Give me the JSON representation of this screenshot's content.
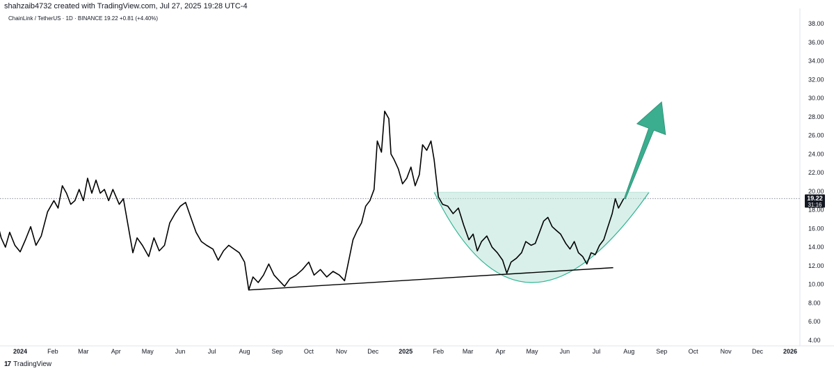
{
  "header": {
    "caption": "shahzaib4732 created with TradingView.com, Jul 27, 2025 19:28 UTC-4"
  },
  "symbol_line": "ChainLink / TetherUS · 1D · BINANCE  19.22  +0.81 (+4.40%)",
  "price_label": {
    "price": "19.22",
    "countdown": "31:16"
  },
  "footer": {
    "brand": "TradingView",
    "logo_glyph": "17"
  },
  "colors": {
    "line": "#000000",
    "cup_fill": "#b9e3d8",
    "cup_stroke": "#2fb592",
    "arrow": "#3aae8f",
    "last_price_box": "#131722",
    "grid_dotted": "#787b86"
  },
  "chart_data": {
    "type": "line",
    "symbol": "ChainLink / TetherUS",
    "interval": "1D",
    "exchange": "BINANCE",
    "last": 19.22,
    "change": "+0.81 (+4.40%)",
    "ylim": [
      4,
      38
    ],
    "y_ticks": [
      "4.00",
      "6.00",
      "8.00",
      "10.00",
      "12.00",
      "14.00",
      "16.00",
      "18.00",
      "20.00",
      "22.00",
      "24.00",
      "26.00",
      "28.00",
      "30.00",
      "32.00",
      "34.00",
      "36.00",
      "38.00"
    ],
    "x_ticks": [
      {
        "label": "2024",
        "date": "2024-01-01",
        "bold": true
      },
      {
        "label": "Feb",
        "date": "2024-02-01"
      },
      {
        "label": "Mar",
        "date": "2024-03-01"
      },
      {
        "label": "Apr",
        "date": "2024-04-01"
      },
      {
        "label": "May",
        "date": "2024-05-01"
      },
      {
        "label": "Jun",
        "date": "2024-06-01"
      },
      {
        "label": "Jul",
        "date": "2024-07-01"
      },
      {
        "label": "Aug",
        "date": "2024-08-01"
      },
      {
        "label": "Sep",
        "date": "2024-09-01"
      },
      {
        "label": "Oct",
        "date": "2024-10-01"
      },
      {
        "label": "Nov",
        "date": "2024-11-01"
      },
      {
        "label": "Dec",
        "date": "2024-12-01"
      },
      {
        "label": "2025",
        "date": "2025-01-01",
        "bold": true
      },
      {
        "label": "Feb",
        "date": "2025-02-01"
      },
      {
        "label": "Mar",
        "date": "2025-03-01"
      },
      {
        "label": "Apr",
        "date": "2025-04-01"
      },
      {
        "label": "May",
        "date": "2025-05-01"
      },
      {
        "label": "Jun",
        "date": "2025-06-01"
      },
      {
        "label": "Jul",
        "date": "2025-07-01"
      },
      {
        "label": "Aug",
        "date": "2025-08-01"
      },
      {
        "label": "Sep",
        "date": "2025-09-01"
      },
      {
        "label": "Oct",
        "date": "2025-10-01"
      },
      {
        "label": "Nov",
        "date": "2025-11-01"
      },
      {
        "label": "Dec",
        "date": "2025-12-01"
      },
      {
        "label": "2026",
        "date": "2026-01-01",
        "bold": true
      }
    ],
    "series": [
      {
        "points": [
          [
            "2023-12-01",
            14.2
          ],
          [
            "2023-12-06",
            15.5
          ],
          [
            "2023-12-10",
            16.8
          ],
          [
            "2023-12-14",
            15.0
          ],
          [
            "2023-12-18",
            14.0
          ],
          [
            "2023-12-22",
            15.6
          ],
          [
            "2023-12-27",
            14.2
          ],
          [
            "2024-01-01",
            13.5
          ],
          [
            "2024-01-06",
            14.8
          ],
          [
            "2024-01-11",
            16.2
          ],
          [
            "2024-01-16",
            14.2
          ],
          [
            "2024-01-21",
            15.2
          ],
          [
            "2024-01-27",
            17.8
          ],
          [
            "2024-02-02",
            19.0
          ],
          [
            "2024-02-06",
            18.2
          ],
          [
            "2024-02-10",
            20.6
          ],
          [
            "2024-02-14",
            19.8
          ],
          [
            "2024-02-18",
            18.6
          ],
          [
            "2024-02-22",
            19.0
          ],
          [
            "2024-02-26",
            20.2
          ],
          [
            "2024-03-01",
            19.0
          ],
          [
            "2024-03-05",
            21.4
          ],
          [
            "2024-03-09",
            19.8
          ],
          [
            "2024-03-13",
            21.2
          ],
          [
            "2024-03-17",
            19.8
          ],
          [
            "2024-03-21",
            20.2
          ],
          [
            "2024-03-25",
            19.0
          ],
          [
            "2024-03-29",
            20.2
          ],
          [
            "2024-04-04",
            18.6
          ],
          [
            "2024-04-08",
            19.2
          ],
          [
            "2024-04-12",
            16.6
          ],
          [
            "2024-04-17",
            13.4
          ],
          [
            "2024-04-21",
            15.0
          ],
          [
            "2024-04-26",
            14.2
          ],
          [
            "2024-05-02",
            13.0
          ],
          [
            "2024-05-07",
            15.0
          ],
          [
            "2024-05-12",
            13.6
          ],
          [
            "2024-05-17",
            14.2
          ],
          [
            "2024-05-22",
            16.6
          ],
          [
            "2024-05-27",
            17.6
          ],
          [
            "2024-06-01",
            18.4
          ],
          [
            "2024-06-06",
            18.8
          ],
          [
            "2024-06-11",
            17.2
          ],
          [
            "2024-06-16",
            15.6
          ],
          [
            "2024-06-21",
            14.6
          ],
          [
            "2024-06-26",
            14.2
          ],
          [
            "2024-07-02",
            13.8
          ],
          [
            "2024-07-07",
            12.6
          ],
          [
            "2024-07-12",
            13.6
          ],
          [
            "2024-07-17",
            14.2
          ],
          [
            "2024-07-22",
            13.8
          ],
          [
            "2024-07-27",
            13.4
          ],
          [
            "2024-08-01",
            12.4
          ],
          [
            "2024-08-05",
            9.4
          ],
          [
            "2024-08-09",
            10.8
          ],
          [
            "2024-08-14",
            10.2
          ],
          [
            "2024-08-19",
            11.0
          ],
          [
            "2024-08-24",
            12.2
          ],
          [
            "2024-08-29",
            11.0
          ],
          [
            "2024-09-03",
            10.4
          ],
          [
            "2024-09-08",
            9.8
          ],
          [
            "2024-09-13",
            10.6
          ],
          [
            "2024-09-19",
            11.0
          ],
          [
            "2024-09-25",
            11.6
          ],
          [
            "2024-10-01",
            12.4
          ],
          [
            "2024-10-06",
            11.0
          ],
          [
            "2024-10-12",
            11.6
          ],
          [
            "2024-10-18",
            10.8
          ],
          [
            "2024-10-24",
            11.4
          ],
          [
            "2024-10-30",
            11.0
          ],
          [
            "2024-11-04",
            10.4
          ],
          [
            "2024-11-08",
            12.6
          ],
          [
            "2024-11-12",
            14.8
          ],
          [
            "2024-11-16",
            15.8
          ],
          [
            "2024-11-20",
            16.6
          ],
          [
            "2024-11-24",
            18.4
          ],
          [
            "2024-11-28",
            19.0
          ],
          [
            "2024-12-02",
            20.2
          ],
          [
            "2024-12-05",
            25.4
          ],
          [
            "2024-12-09",
            24.2
          ],
          [
            "2024-12-12",
            28.6
          ],
          [
            "2024-12-16",
            27.8
          ],
          [
            "2024-12-18",
            24.0
          ],
          [
            "2024-12-21",
            23.4
          ],
          [
            "2024-12-25",
            22.4
          ],
          [
            "2024-12-29",
            20.8
          ],
          [
            "2025-01-02",
            21.4
          ],
          [
            "2025-01-06",
            22.6
          ],
          [
            "2025-01-10",
            20.6
          ],
          [
            "2025-01-14",
            21.8
          ],
          [
            "2025-01-17",
            25.0
          ],
          [
            "2025-01-21",
            24.4
          ],
          [
            "2025-01-25",
            25.4
          ],
          [
            "2025-01-28",
            23.4
          ],
          [
            "2025-02-01",
            19.4
          ],
          [
            "2025-02-05",
            18.6
          ],
          [
            "2025-02-10",
            18.4
          ],
          [
            "2025-02-15",
            17.6
          ],
          [
            "2025-02-20",
            18.2
          ],
          [
            "2025-02-25",
            16.4
          ],
          [
            "2025-03-02",
            14.8
          ],
          [
            "2025-03-06",
            15.4
          ],
          [
            "2025-03-10",
            13.6
          ],
          [
            "2025-03-14",
            14.6
          ],
          [
            "2025-03-19",
            15.2
          ],
          [
            "2025-03-24",
            14.0
          ],
          [
            "2025-03-29",
            13.4
          ],
          [
            "2025-04-03",
            12.6
          ],
          [
            "2025-04-07",
            11.2
          ],
          [
            "2025-04-11",
            12.4
          ],
          [
            "2025-04-16",
            12.8
          ],
          [
            "2025-04-21",
            13.4
          ],
          [
            "2025-04-25",
            14.6
          ],
          [
            "2025-04-30",
            14.2
          ],
          [
            "2025-05-04",
            14.4
          ],
          [
            "2025-05-08",
            15.6
          ],
          [
            "2025-05-12",
            16.8
          ],
          [
            "2025-05-16",
            17.2
          ],
          [
            "2025-05-20",
            16.2
          ],
          [
            "2025-05-24",
            15.8
          ],
          [
            "2025-05-28",
            15.4
          ],
          [
            "2025-06-02",
            14.4
          ],
          [
            "2025-06-06",
            13.8
          ],
          [
            "2025-06-10",
            14.6
          ],
          [
            "2025-06-14",
            13.4
          ],
          [
            "2025-06-18",
            13.0
          ],
          [
            "2025-06-22",
            12.2
          ],
          [
            "2025-06-26",
            13.4
          ],
          [
            "2025-06-30",
            13.2
          ],
          [
            "2025-07-04",
            14.2
          ],
          [
            "2025-07-08",
            14.8
          ],
          [
            "2025-07-12",
            16.2
          ],
          [
            "2025-07-16",
            17.6
          ],
          [
            "2025-07-19",
            19.2
          ],
          [
            "2025-07-22",
            18.2
          ],
          [
            "2025-07-25",
            18.8
          ],
          [
            "2025-07-27",
            19.22
          ]
        ]
      }
    ],
    "annotations": {
      "last_price_line": 19.22,
      "support_line": [
        [
          "2024-08-05",
          9.4
        ],
        [
          "2025-07-17",
          11.8
        ]
      ],
      "cup": {
        "left": [
          "2025-01-28",
          19.9
        ],
        "bottom": [
          "2025-05-01",
          10.2
        ],
        "right": [
          "2025-08-20",
          19.9
        ]
      },
      "arrow": {
        "from": [
          "2025-07-28",
          19.2
        ],
        "to": [
          "2025-09-01",
          29.6
        ]
      }
    }
  }
}
